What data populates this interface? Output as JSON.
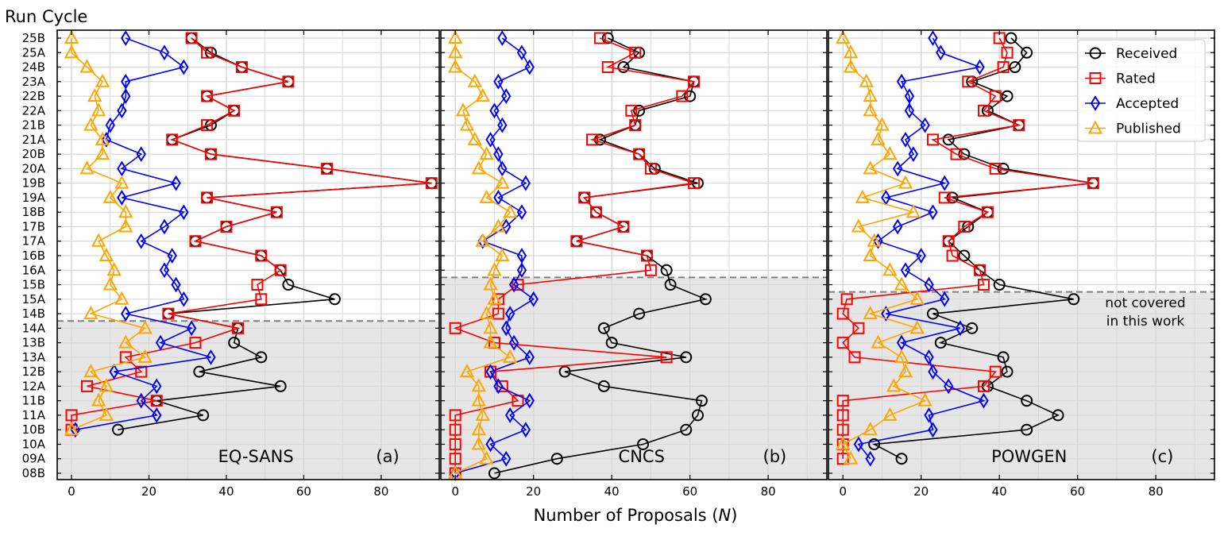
{
  "chart_data": {
    "type": "line",
    "ylabel": "Run Cycle",
    "xlabel": "Number of Proposals (N)",
    "xlabel_parts": {
      "text": "Number of Proposals (",
      "var": "N",
      "close": ")"
    },
    "xlim": [
      -3.7,
      95
    ],
    "xticks": [
      0,
      20,
      40,
      60,
      80
    ],
    "grid": true,
    "legend_placement": "top-right",
    "categories": [
      "08B",
      "09A",
      "10A",
      "10B",
      "11A",
      "11B",
      "12A",
      "12B",
      "13A",
      "13B",
      "14A",
      "14B",
      "15A",
      "15B",
      "16A",
      "16B",
      "17A",
      "17B",
      "18B",
      "19A",
      "19B",
      "20A",
      "20B",
      "21A",
      "21B",
      "22A",
      "22B",
      "23A",
      "24B",
      "25A",
      "25B"
    ],
    "series_styles": [
      {
        "name": "Received",
        "color": "#000000",
        "marker": "circle"
      },
      {
        "name": "Rated",
        "color": "#ff0000",
        "marker": "square"
      },
      {
        "name": "Accepted",
        "color": "#0000ff",
        "marker": "diamond"
      },
      {
        "name": "Published",
        "color": "#ffa500",
        "marker": "triangle"
      }
    ],
    "shaded_color": "#e6e6e6",
    "annotation": [
      "not covered",
      "in this work"
    ],
    "panels": [
      {
        "instrument": "EQ-SANS",
        "tag": "(a)",
        "covered_from": "14B",
        "series": {
          "Received": [
            null,
            null,
            null,
            12,
            34,
            22,
            54,
            33,
            49,
            42,
            43,
            25,
            68,
            56,
            54,
            49,
            32,
            40,
            53,
            35,
            93,
            66,
            36,
            26,
            36,
            42,
            35,
            56,
            44,
            36,
            31
          ],
          "Rated": [
            null,
            null,
            null,
            0,
            0,
            22,
            4,
            18,
            14,
            32,
            43,
            25,
            49,
            48,
            54,
            49,
            32,
            40,
            53,
            35,
            93,
            66,
            36,
            26,
            35,
            42,
            35,
            56,
            44,
            35,
            31
          ],
          "Accepted": [
            null,
            null,
            null,
            1,
            22,
            18,
            22,
            11,
            36,
            23,
            31,
            14,
            29,
            27,
            24,
            26,
            18,
            24,
            29,
            13,
            27,
            13,
            18,
            9,
            10,
            13,
            14,
            14,
            29,
            24,
            14
          ],
          "Published": [
            null,
            null,
            null,
            0,
            9,
            7,
            9,
            5,
            19,
            14,
            19,
            5,
            13,
            10,
            11,
            9,
            7,
            14,
            14,
            10,
            13,
            4,
            8,
            8,
            5,
            7,
            6,
            8,
            4,
            0,
            0
          ]
        }
      },
      {
        "instrument": "CNCS",
        "tag": "(b)",
        "covered_from": "16A",
        "series": {
          "Received": [
            10,
            26,
            48,
            59,
            62,
            63,
            38,
            28,
            59,
            40,
            38,
            47,
            64,
            55,
            54,
            49,
            31,
            43,
            36,
            33,
            62,
            51,
            47,
            37,
            46,
            47,
            60,
            61,
            43,
            47,
            39
          ],
          "Rated": [
            0,
            0,
            0,
            0,
            0,
            16,
            12,
            9,
            54,
            10,
            0,
            11,
            11,
            16,
            50,
            49,
            31,
            43,
            36,
            33,
            61,
            50,
            47,
            35,
            46,
            45,
            58,
            61,
            39,
            46,
            37
          ],
          "Accepted": [
            0,
            13,
            9,
            18,
            14,
            19,
            11,
            9,
            19,
            15,
            13,
            14,
            20,
            15,
            17,
            17,
            7,
            13,
            17,
            11,
            18,
            12,
            11,
            9,
            12,
            10,
            13,
            11,
            19,
            17,
            12
          ],
          "Published": [
            0,
            8,
            6,
            6,
            7,
            6,
            6,
            3,
            14,
            9,
            9,
            8,
            10,
            9,
            10,
            12,
            7,
            11,
            14,
            8,
            12,
            6,
            8,
            5,
            3,
            2,
            7,
            5,
            0,
            0,
            0
          ]
        }
      },
      {
        "instrument": "POWGEN",
        "tag": "(c)",
        "covered_from": "15B",
        "series": {
          "Received": [
            null,
            15,
            8,
            47,
            55,
            47,
            37,
            42,
            41,
            25,
            33,
            23,
            59,
            40,
            35,
            31,
            27,
            32,
            37,
            28,
            64,
            41,
            31,
            27,
            45,
            37,
            42,
            33,
            44,
            47,
            43
          ],
          "Rated": [
            null,
            0,
            0,
            0,
            0,
            0,
            36,
            39,
            3,
            0,
            4,
            0,
            1,
            36,
            35,
            28,
            27,
            31,
            37,
            26,
            64,
            39,
            29,
            23,
            45,
            36,
            39,
            32,
            41,
            42,
            40
          ],
          "Accepted": [
            null,
            7,
            4,
            23,
            22,
            36,
            27,
            23,
            22,
            15,
            30,
            11,
            26,
            22,
            16,
            20,
            9,
            14,
            23,
            11,
            26,
            14,
            18,
            16,
            21,
            17,
            17,
            15,
            35,
            25,
            23
          ],
          "Published": [
            null,
            2,
            0,
            7,
            12,
            21,
            13,
            16,
            15,
            9,
            19,
            7,
            19,
            15,
            12,
            7,
            8,
            4,
            18,
            5,
            16,
            7,
            12,
            9,
            10,
            7,
            7,
            6,
            2,
            2,
            0
          ]
        }
      }
    ]
  }
}
